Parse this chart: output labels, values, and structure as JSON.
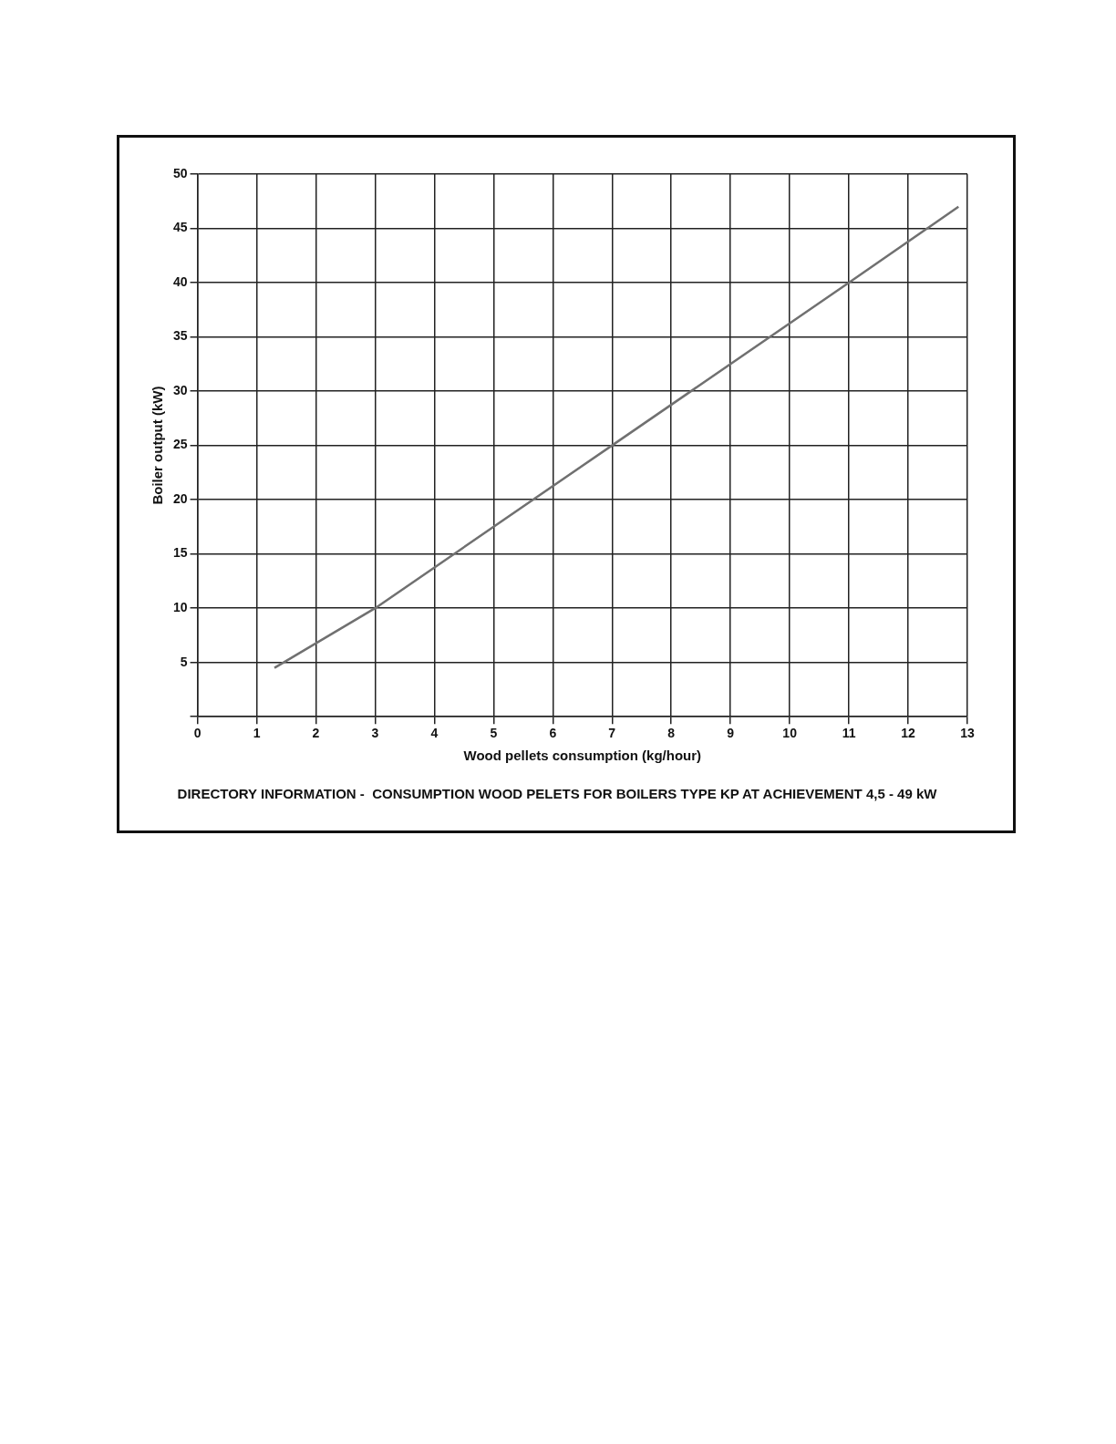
{
  "chart_data": {
    "type": "line",
    "title": "DIRECTORY INFORMATION -  CONSUMPTION WOOD PELETS FOR BOILERS TYPE KP AT ACHIEVEMENT 4,5 - 49 kW",
    "xlabel": "Wood pellets consumption (kg/hour)",
    "ylabel": "Boiler output (kW)",
    "series": [
      {
        "color": "#707070",
        "x": [
          1.3,
          3,
          7,
          11,
          12.85
        ],
        "values": [
          4.5,
          10,
          25,
          40,
          47
        ]
      }
    ],
    "xlim": [
      0,
      13
    ],
    "xticks": [
      0,
      1,
      2,
      3,
      4,
      5,
      6,
      7,
      8,
      9,
      10,
      11,
      12,
      13
    ],
    "ylim": [
      0,
      50
    ],
    "yticks": [
      {
        "value": 0,
        "label": null
      },
      5,
      10,
      15,
      20,
      25,
      30,
      35,
      40,
      45,
      50
    ],
    "grid": true,
    "legend": false,
    "marker": "none",
    "line_style": "solid"
  }
}
